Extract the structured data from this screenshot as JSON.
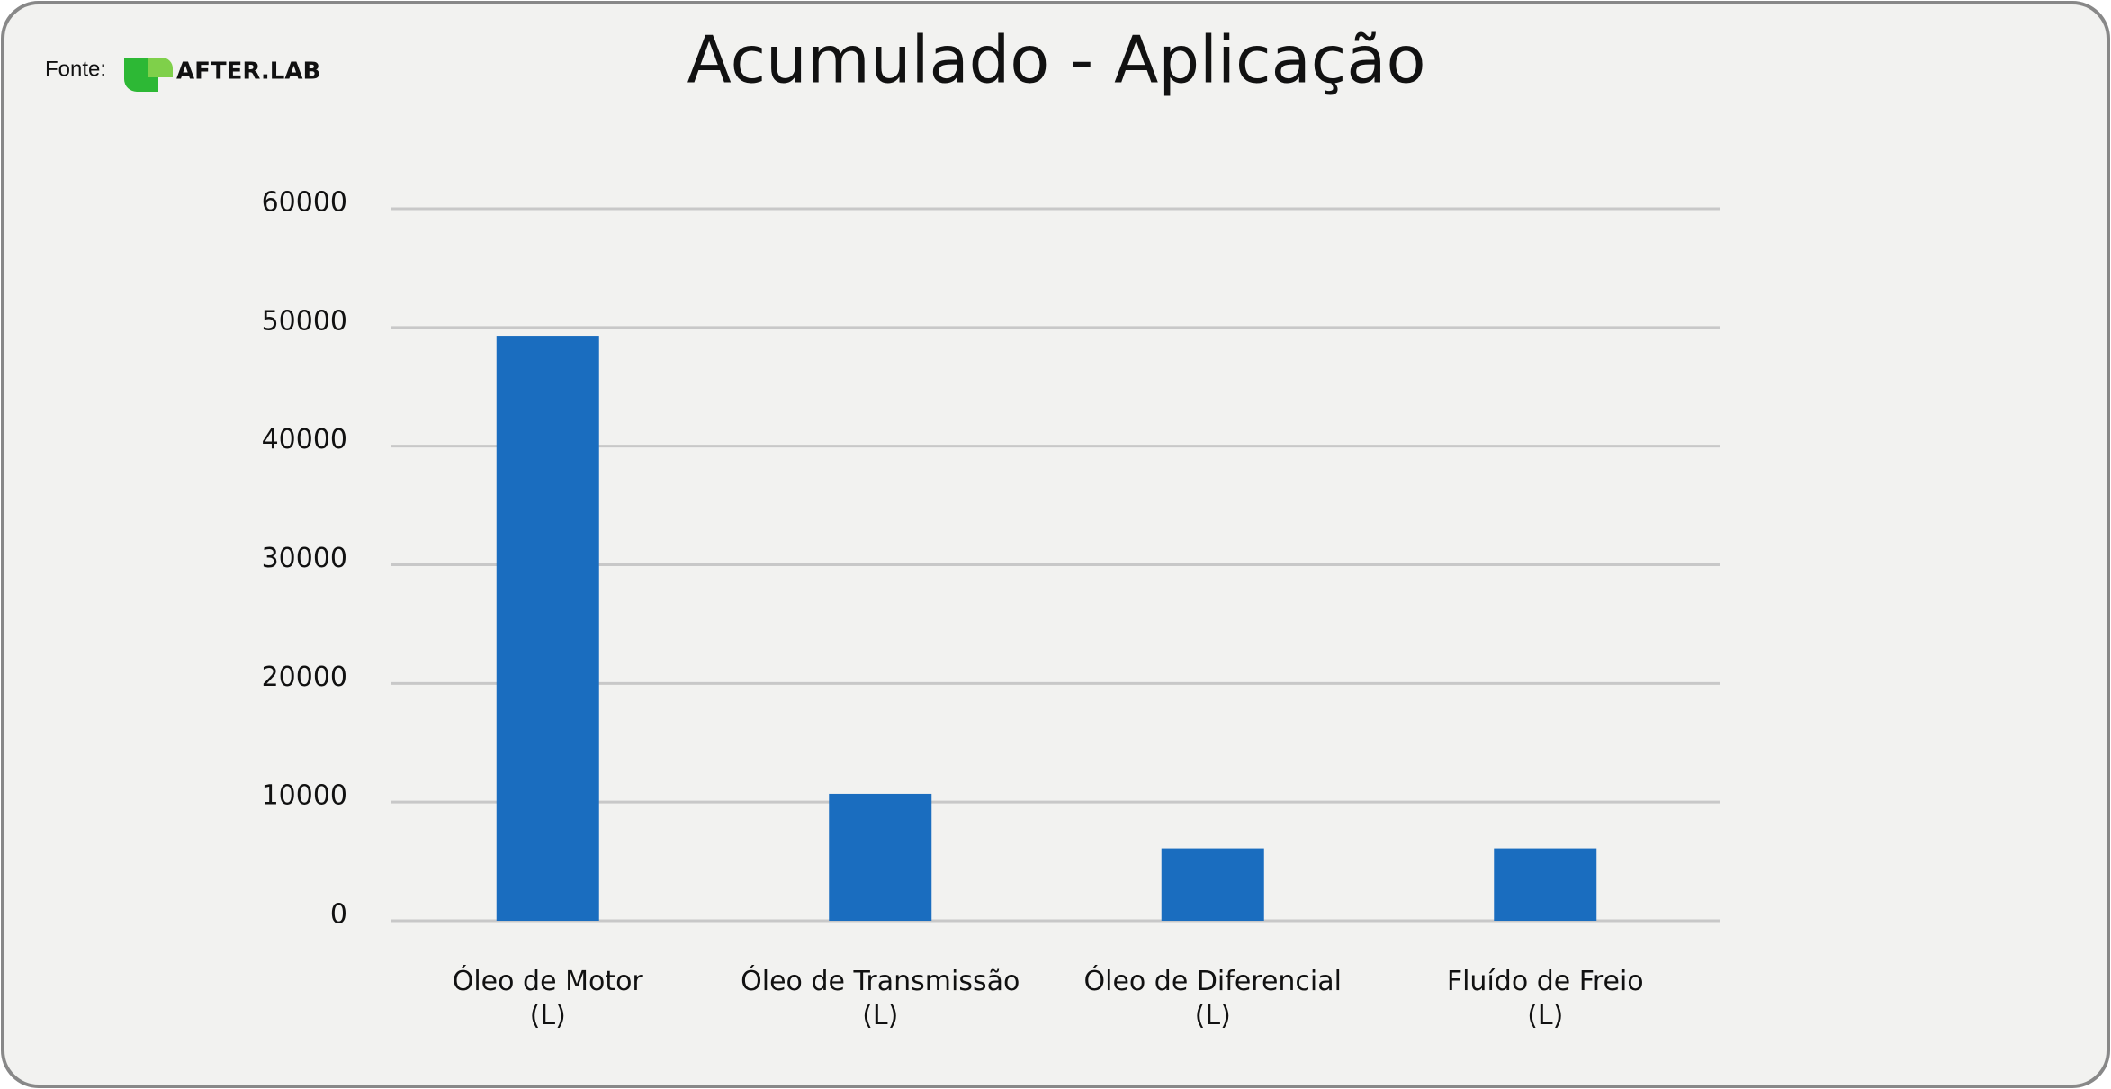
{
  "source_label": "Fonte:",
  "logo": "AFTER.LAB",
  "chart_data": {
    "type": "bar",
    "title": "Acumulado - Aplicação",
    "categories": [
      "Óleo de Motor\n(L)",
      "Óleo de Transmissão\n(L)",
      "Óleo de Diferencial\n(L)",
      "Fluído de Freio\n(L)"
    ],
    "values": [
      49300,
      10700,
      6100,
      6100
    ],
    "color": "#1a6dbf",
    "ylim": [
      0,
      60000
    ],
    "yticks": [
      0,
      10000,
      20000,
      30000,
      40000,
      50000,
      60000
    ],
    "grid": true
  }
}
